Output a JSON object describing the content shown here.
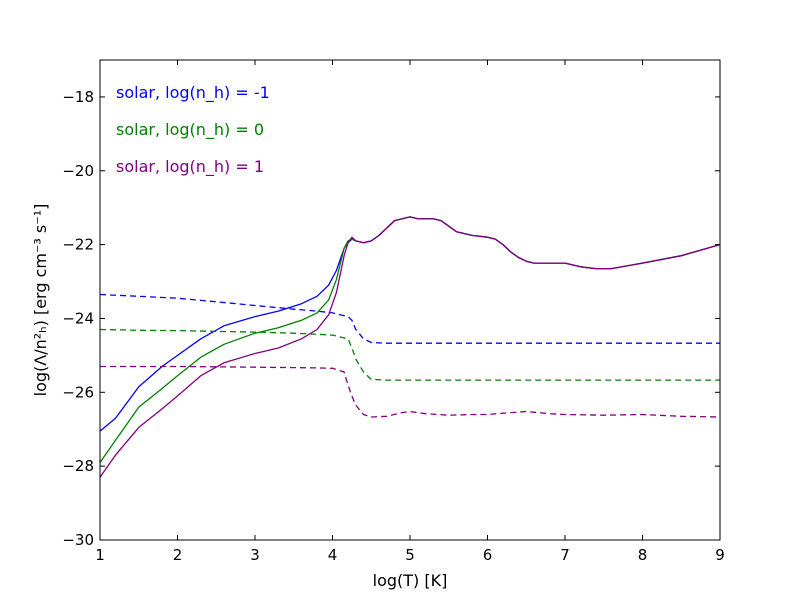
{
  "chart_data": {
    "type": "line",
    "xlabel": "log(T) [K]",
    "ylabel": "log(Λ/n²ₕ) [erg cm⁻³ s⁻¹]",
    "xlim": [
      1,
      9
    ],
    "ylim": [
      -30,
      -17
    ],
    "xticks": [
      1,
      2,
      3,
      4,
      5,
      6,
      7,
      8,
      9
    ],
    "yticks": [
      -30,
      -28,
      -26,
      -24,
      -22,
      -20,
      -18
    ],
    "xtick_labels": [
      "1",
      "2",
      "3",
      "4",
      "5",
      "6",
      "7",
      "8",
      "9"
    ],
    "ytick_labels": [
      "−30",
      "−28",
      "−26",
      "−24",
      "−22",
      "−20",
      "−18"
    ],
    "grid": false,
    "legend": {
      "placement": "top-left",
      "entries": [
        {
          "label": "solar, log(n_h) = -1",
          "color": "#0000ff"
        },
        {
          "label": "solar, log(n_h) = 0",
          "color": "#008000"
        },
        {
          "label": "solar, log(n_h) = 1",
          "color": "#800080"
        }
      ]
    },
    "series": [
      {
        "color": "#0000ff",
        "style": "solid",
        "x": [
          1.0,
          1.2,
          1.5,
          1.8,
          2.0,
          2.3,
          2.6,
          3.0,
          3.3,
          3.6,
          3.8,
          3.95,
          4.05,
          4.15,
          4.2,
          4.25,
          4.3,
          4.4,
          4.5,
          4.6,
          4.7,
          4.8,
          4.9,
          5.0,
          5.1,
          5.2,
          5.3,
          5.4,
          5.5,
          5.6,
          5.8,
          6.0,
          6.1,
          6.2,
          6.3,
          6.4,
          6.5,
          6.6,
          6.8,
          7.0,
          7.2,
          7.4,
          7.6,
          8.0,
          8.5,
          9.0
        ],
        "y": [
          -27.05,
          -26.7,
          -25.85,
          -25.3,
          -25.0,
          -24.55,
          -24.2,
          -23.95,
          -23.8,
          -23.6,
          -23.4,
          -23.1,
          -22.7,
          -22.1,
          -21.95,
          -21.85,
          -21.9,
          -21.95,
          -21.9,
          -21.75,
          -21.55,
          -21.35,
          -21.3,
          -21.25,
          -21.3,
          -21.3,
          -21.3,
          -21.35,
          -21.5,
          -21.65,
          -21.75,
          -21.8,
          -21.85,
          -22.0,
          -22.2,
          -22.35,
          -22.45,
          -22.5,
          -22.5,
          -22.5,
          -22.6,
          -22.65,
          -22.65,
          -22.5,
          -22.3,
          -22.0
        ]
      },
      {
        "color": "#008000",
        "style": "solid",
        "x": [
          1.0,
          1.2,
          1.5,
          1.8,
          2.0,
          2.3,
          2.6,
          3.0,
          3.3,
          3.6,
          3.8,
          3.95,
          4.05,
          4.15,
          4.2,
          4.25,
          4.3,
          4.4,
          4.5,
          4.6,
          4.7,
          4.8,
          4.9,
          5.0,
          5.1,
          5.2,
          5.3,
          5.4,
          5.5,
          5.6,
          5.8,
          6.0,
          6.1,
          6.2,
          6.3,
          6.4,
          6.5,
          6.6,
          6.8,
          7.0,
          7.2,
          7.4,
          7.6,
          8.0,
          8.5,
          9.0
        ],
        "y": [
          -27.9,
          -27.3,
          -26.4,
          -25.9,
          -25.55,
          -25.05,
          -24.7,
          -24.4,
          -24.25,
          -24.05,
          -23.85,
          -23.5,
          -22.95,
          -22.1,
          -21.9,
          -21.85,
          -21.9,
          -21.95,
          -21.9,
          -21.75,
          -21.55,
          -21.35,
          -21.3,
          -21.25,
          -21.3,
          -21.3,
          -21.3,
          -21.35,
          -21.5,
          -21.65,
          -21.75,
          -21.8,
          -21.85,
          -22.0,
          -22.2,
          -22.35,
          -22.45,
          -22.5,
          -22.5,
          -22.5,
          -22.6,
          -22.65,
          -22.65,
          -22.5,
          -22.3,
          -22.0
        ]
      },
      {
        "color": "#800080",
        "style": "solid",
        "x": [
          1.0,
          1.2,
          1.5,
          1.8,
          2.0,
          2.3,
          2.6,
          3.0,
          3.3,
          3.6,
          3.8,
          3.95,
          4.05,
          4.15,
          4.2,
          4.25,
          4.3,
          4.4,
          4.5,
          4.6,
          4.7,
          4.8,
          4.9,
          5.0,
          5.1,
          5.2,
          5.3,
          5.4,
          5.5,
          5.6,
          5.8,
          6.0,
          6.1,
          6.2,
          6.3,
          6.4,
          6.5,
          6.6,
          6.8,
          7.0,
          7.2,
          7.4,
          7.6,
          8.0,
          8.5,
          9.0
        ],
        "y": [
          -28.3,
          -27.7,
          -26.95,
          -26.45,
          -26.1,
          -25.55,
          -25.2,
          -24.95,
          -24.8,
          -24.55,
          -24.3,
          -23.9,
          -23.3,
          -22.3,
          -21.95,
          -21.8,
          -21.9,
          -21.95,
          -21.9,
          -21.75,
          -21.55,
          -21.35,
          -21.3,
          -21.25,
          -21.3,
          -21.3,
          -21.3,
          -21.35,
          -21.5,
          -21.65,
          -21.75,
          -21.8,
          -21.85,
          -22.0,
          -22.2,
          -22.35,
          -22.45,
          -22.5,
          -22.5,
          -22.5,
          -22.6,
          -22.65,
          -22.65,
          -22.5,
          -22.3,
          -22.0
        ]
      },
      {
        "color": "#0000ff",
        "style": "dashed",
        "x": [
          1.0,
          1.5,
          2.0,
          2.5,
          3.0,
          3.5,
          3.8,
          4.0,
          4.2,
          4.25,
          4.3,
          4.4,
          4.5,
          4.7,
          5.0,
          6.0,
          7.0,
          8.0,
          9.0
        ],
        "y": [
          -23.35,
          -23.4,
          -23.45,
          -23.55,
          -23.65,
          -23.75,
          -23.8,
          -23.85,
          -23.95,
          -24.05,
          -24.3,
          -24.55,
          -24.65,
          -24.67,
          -24.67,
          -24.67,
          -24.67,
          -24.67,
          -24.67
        ]
      },
      {
        "color": "#008000",
        "style": "dashed",
        "x": [
          1.0,
          1.5,
          2.0,
          2.5,
          3.0,
          3.5,
          3.8,
          4.0,
          4.2,
          4.25,
          4.3,
          4.4,
          4.5,
          4.7,
          5.0,
          6.0,
          7.0,
          8.0,
          9.0
        ],
        "y": [
          -24.3,
          -24.32,
          -24.33,
          -24.35,
          -24.37,
          -24.4,
          -24.43,
          -24.45,
          -24.55,
          -24.8,
          -25.1,
          -25.45,
          -25.65,
          -25.67,
          -25.67,
          -25.67,
          -25.67,
          -25.67,
          -25.67
        ]
      },
      {
        "color": "#800080",
        "style": "dashed",
        "x": [
          1.0,
          1.5,
          2.0,
          2.5,
          3.0,
          3.5,
          3.8,
          4.0,
          4.15,
          4.2,
          4.25,
          4.3,
          4.4,
          4.5,
          4.7,
          4.9,
          5.0,
          5.2,
          5.5,
          5.8,
          6.0,
          6.3,
          6.5,
          6.8,
          7.0,
          7.5,
          8.0,
          8.5,
          9.0
        ],
        "y": [
          -25.3,
          -25.3,
          -25.3,
          -25.31,
          -25.32,
          -25.33,
          -25.34,
          -25.35,
          -25.45,
          -25.8,
          -26.1,
          -26.35,
          -26.6,
          -26.67,
          -26.65,
          -26.55,
          -26.52,
          -26.58,
          -26.62,
          -26.6,
          -26.6,
          -26.55,
          -26.52,
          -26.58,
          -26.6,
          -26.62,
          -26.6,
          -26.65,
          -26.67
        ]
      }
    ]
  }
}
